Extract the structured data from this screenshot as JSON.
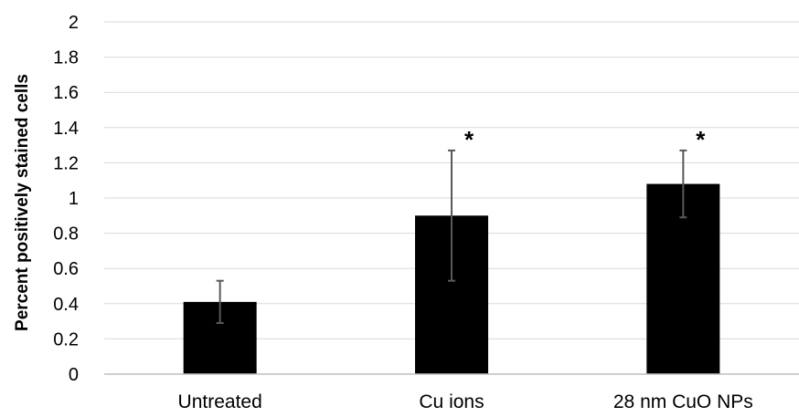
{
  "chart_data": {
    "type": "bar",
    "categories": [
      "Untreated",
      "Cu ions",
      "28 nm CuO NPs"
    ],
    "values": [
      0.41,
      0.9,
      1.08
    ],
    "error": [
      0.12,
      0.37,
      0.19
    ],
    "annotations": [
      "",
      "*",
      "*"
    ],
    "ylabel": "Percent positively stained cells",
    "xlabel": "",
    "ylim": [
      0,
      2
    ],
    "yticks": [
      "0",
      "0.2",
      "0.4",
      "0.6",
      "0.8",
      "1",
      "1.2",
      "1.4",
      "1.6",
      "1.8",
      "2"
    ],
    "grid": true,
    "legend": "none",
    "colors": {
      "bar": "#000000",
      "grid": "#d9d9d9",
      "error_bar": "#595959"
    }
  }
}
